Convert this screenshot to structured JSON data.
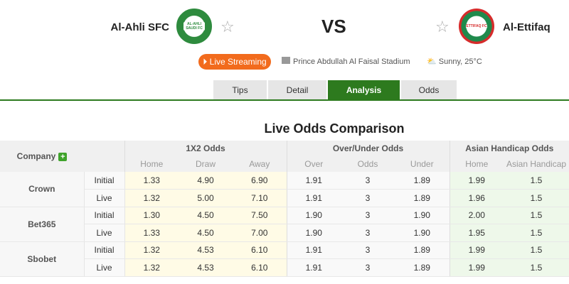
{
  "header": {
    "home_team": "Al-Ahli SFC",
    "away_team": "Al-Ettifaq",
    "vs": "VS",
    "live_label": "Live Streaming",
    "stadium": "Prince Abdullah Al Faisal Stadium",
    "weather": "Sunny, 25°C",
    "home_logo_text": "AL-AHLI SAUDI FC",
    "away_logo_text": "ETTIFAQ FC"
  },
  "tabs": [
    {
      "label": "Tips"
    },
    {
      "label": "Detail"
    },
    {
      "label": "Analysis",
      "active": true
    },
    {
      "label": "Odds"
    }
  ],
  "colors": {
    "accent": "#2d7a1e",
    "live": "#f26b1d"
  },
  "section_title": "Live Odds Comparison",
  "table": {
    "company_header": "Company",
    "groups": [
      "1X2 Odds",
      "Over/Under Odds",
      "Asian Handicap Odds"
    ],
    "subheaders": [
      "Home",
      "Draw",
      "Away",
      "Over",
      "Odds",
      "Under",
      "Home",
      "Asian Handicap"
    ],
    "companies": [
      {
        "name": "Crown",
        "rows": [
          {
            "type": "Initial",
            "values": [
              "1.33",
              "4.90",
              "6.90",
              "1.91",
              "3",
              "1.89",
              "1.99",
              "1.5"
            ]
          },
          {
            "type": "Live",
            "values": [
              "1.32",
              "5.00",
              "7.10",
              "1.91",
              "3",
              "1.89",
              "1.96",
              "1.5"
            ]
          }
        ]
      },
      {
        "name": "Bet365",
        "rows": [
          {
            "type": "Initial",
            "values": [
              "1.30",
              "4.50",
              "7.50",
              "1.90",
              "3",
              "1.90",
              "2.00",
              "1.5"
            ]
          },
          {
            "type": "Live",
            "values": [
              "1.33",
              "4.50",
              "7.00",
              "1.90",
              "3",
              "1.90",
              "1.95",
              "1.5"
            ]
          }
        ]
      },
      {
        "name": "Sbobet",
        "rows": [
          {
            "type": "Initial",
            "values": [
              "1.32",
              "4.53",
              "6.10",
              "1.91",
              "3",
              "1.89",
              "1.99",
              "1.5"
            ]
          },
          {
            "type": "Live",
            "values": [
              "1.32",
              "4.53",
              "6.10",
              "1.91",
              "3",
              "1.89",
              "1.99",
              "1.5"
            ]
          }
        ]
      }
    ]
  }
}
